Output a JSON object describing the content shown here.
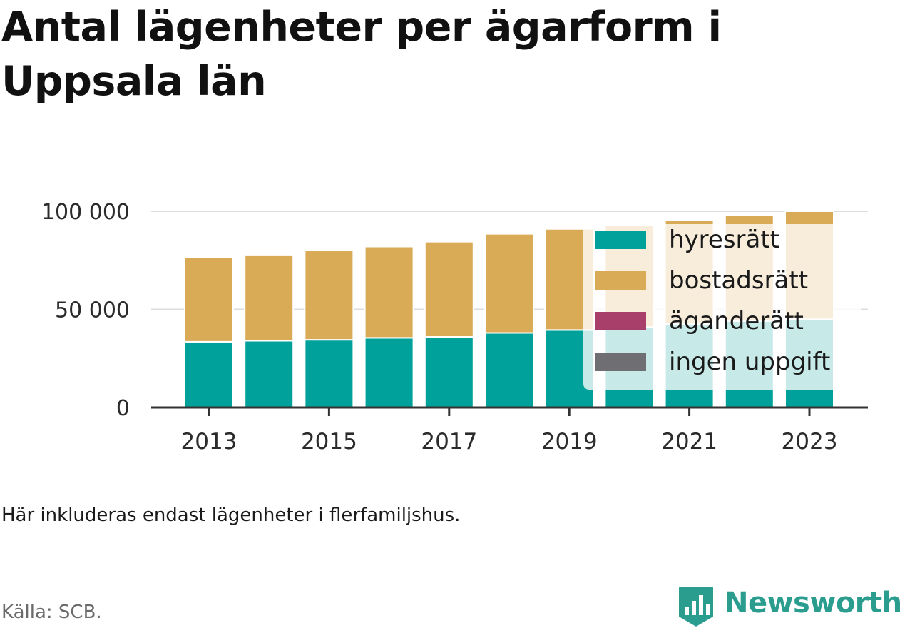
{
  "header": {
    "title": "Antal lägenheter per ägarform i Uppsala län"
  },
  "chart_data": {
    "type": "bar",
    "stacked": true,
    "title": "Antal lägenheter per ägarform i Uppsala län",
    "xlabel": "",
    "ylabel": "",
    "categories": [
      "2013",
      "2014",
      "2015",
      "2016",
      "2017",
      "2018",
      "2019",
      "2020",
      "2021",
      "2022",
      "2023"
    ],
    "x_tick_labels": [
      "2013",
      "2015",
      "2017",
      "2019",
      "2021",
      "2023"
    ],
    "y_ticks": [
      0,
      50000,
      100000
    ],
    "y_tick_labels": [
      "0",
      "50 000",
      "100 000"
    ],
    "ylim": [
      0,
      100000
    ],
    "grid": true,
    "legend_position": "top-right",
    "series": [
      {
        "name": "hyresrätt",
        "color": "#00a19a",
        "values": [
          33500,
          34000,
          34500,
          35500,
          36000,
          38000,
          39500,
          41000,
          42500,
          44000,
          45000
        ]
      },
      {
        "name": "bostadsrätt",
        "color": "#d9ab57",
        "values": [
          43000,
          43500,
          45500,
          46500,
          48500,
          50500,
          51500,
          52000,
          53000,
          54000,
          55000
        ]
      },
      {
        "name": "äganderätt",
        "color": "#a83e6a",
        "values": [
          0,
          0,
          0,
          0,
          0,
          0,
          0,
          0,
          0,
          0,
          0
        ]
      },
      {
        "name": "ingen uppgift",
        "color": "#6e6e73",
        "values": [
          0,
          0,
          0,
          0,
          0,
          0,
          0,
          0,
          0,
          0,
          0
        ]
      }
    ]
  },
  "footer": {
    "caption": "Här inkluderas endast lägenheter i flerfamiljshus.",
    "source": "Källa: SCB.",
    "brand": "Newsworthy"
  },
  "colors": {
    "gridline": "#dddddd",
    "axis": "#333333",
    "tick_text": "#2b2b2b",
    "brand": "#2a9d8f"
  }
}
